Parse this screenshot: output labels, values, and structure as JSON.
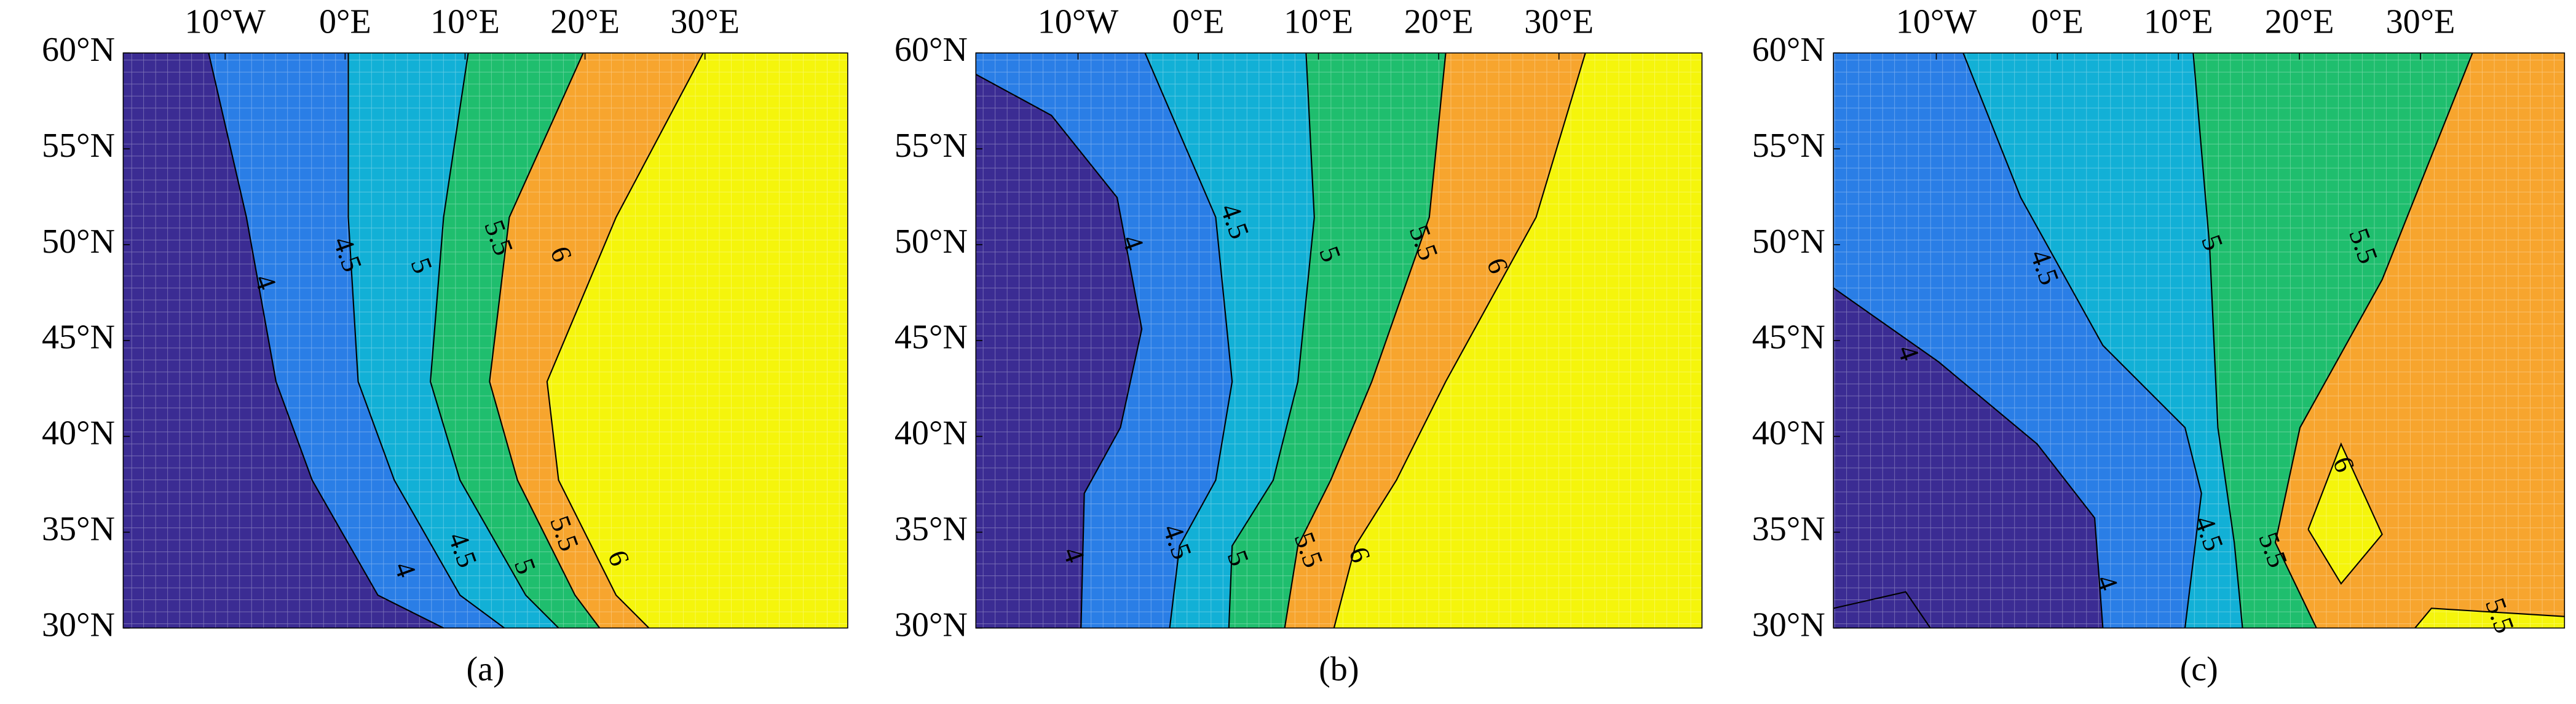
{
  "chart_data": [
    {
      "type": "contour",
      "title": "(a)",
      "xlim": [
        -18.5,
        41.9
      ],
      "ylim": [
        30,
        60
      ],
      "xticks": [
        {
          "value": -10,
          "label": "10°W"
        },
        {
          "value": 0,
          "label": "0°E"
        },
        {
          "value": 10,
          "label": "10°E"
        },
        {
          "value": 20,
          "label": "20°E"
        },
        {
          "value": 30,
          "label": "30°E"
        }
      ],
      "yticks": [
        {
          "value": 30,
          "label": "30°N"
        },
        {
          "value": 35,
          "label": "35°N"
        },
        {
          "value": 40,
          "label": "40°N"
        },
        {
          "value": 45,
          "label": "45°N"
        },
        {
          "value": 50,
          "label": "50°N"
        },
        {
          "value": 55,
          "label": "55°N"
        },
        {
          "value": 60,
          "label": "60°N"
        }
      ],
      "colors": [
        "#3b2c93",
        "#2a7ee6",
        "#12b0d6",
        "#1fbe6e",
        "#f7a52e",
        "#f5f50c"
      ],
      "contour_labels": [
        4,
        4.5,
        5,
        5.5,
        6,
        4,
        4.5,
        5,
        5.5,
        6
      ],
      "grid": true
    },
    {
      "type": "contour",
      "title": "(b)",
      "xlim": [
        -18.5,
        41.9
      ],
      "ylim": [
        30,
        60
      ],
      "xticks": [
        {
          "value": -10,
          "label": "10°W"
        },
        {
          "value": 0,
          "label": "0°E"
        },
        {
          "value": 10,
          "label": "10°E"
        },
        {
          "value": 20,
          "label": "20°E"
        },
        {
          "value": 30,
          "label": "30°E"
        }
      ],
      "yticks": [
        {
          "value": 30,
          "label": "30°N"
        },
        {
          "value": 35,
          "label": "35°N"
        },
        {
          "value": 40,
          "label": "40°N"
        },
        {
          "value": 45,
          "label": "45°N"
        },
        {
          "value": 50,
          "label": "50°N"
        },
        {
          "value": 55,
          "label": "55°N"
        },
        {
          "value": 60,
          "label": "60°N"
        }
      ],
      "colors": [
        "#3b2c93",
        "#2a7ee6",
        "#12b0d6",
        "#1fbe6e",
        "#f7a52e",
        "#f5f50c"
      ],
      "contour_labels": [
        4,
        4.5,
        5,
        5.5,
        6,
        4,
        4.5,
        5,
        5.5,
        6
      ],
      "grid": true
    },
    {
      "type": "contour",
      "title": "(c)",
      "xlim": [
        -18.5,
        41.9
      ],
      "ylim": [
        30,
        60
      ],
      "xticks": [
        {
          "value": -10,
          "label": "10°W"
        },
        {
          "value": 0,
          "label": "0°E"
        },
        {
          "value": 10,
          "label": "10°E"
        },
        {
          "value": 20,
          "label": "20°E"
        },
        {
          "value": 30,
          "label": "30°E"
        }
      ],
      "yticks": [
        {
          "value": 30,
          "label": "30°N"
        },
        {
          "value": 35,
          "label": "35°N"
        },
        {
          "value": 40,
          "label": "40°N"
        },
        {
          "value": 45,
          "label": "45°N"
        },
        {
          "value": 50,
          "label": "50°N"
        },
        {
          "value": 55,
          "label": "55°N"
        },
        {
          "value": 60,
          "label": "60°N"
        }
      ],
      "colors": [
        "#3b2c93",
        "#2a7ee6",
        "#12b0d6",
        "#1fbe6e",
        "#f7a52e",
        "#f5f50c"
      ],
      "contour_labels": [
        4,
        4.5,
        5,
        5.5,
        6,
        4,
        4.5,
        5.5,
        5.5
      ],
      "grid": true
    }
  ]
}
